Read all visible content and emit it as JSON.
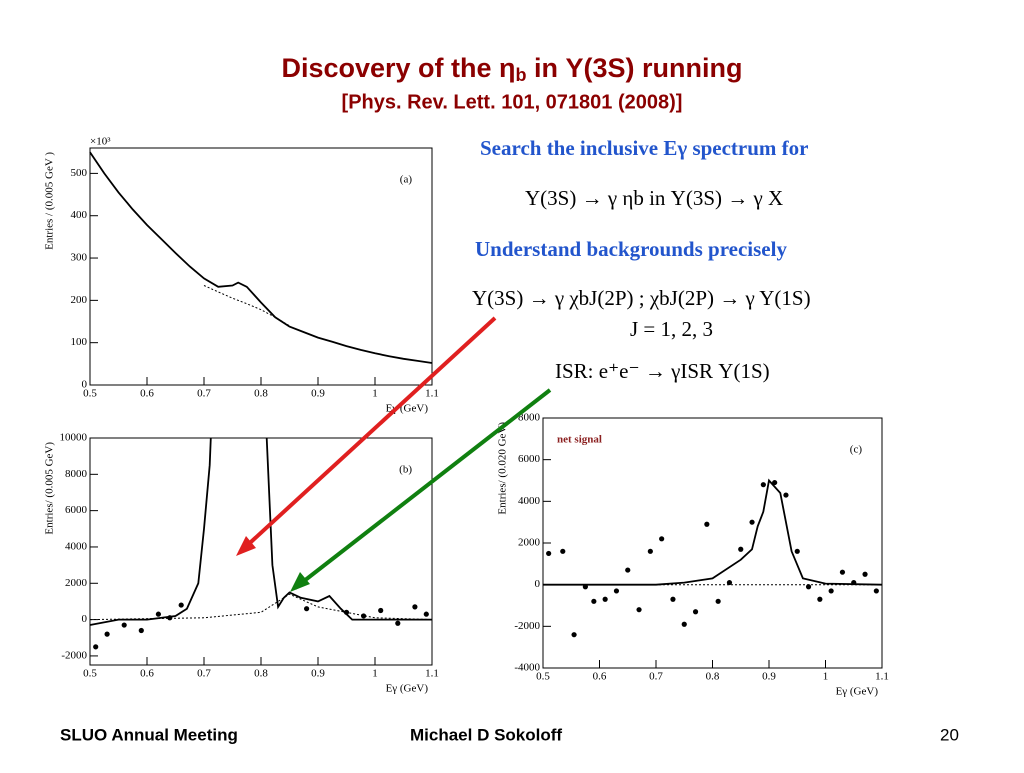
{
  "title": "Discovery of the η",
  "title_sub": "b",
  "title_rest": " in Υ(3S) running",
  "subtitle": "[Phys. Rev. Lett. 101, 071801 (2008)]",
  "notes": [
    "Search the inclusive Eγ spectrum for",
    "Υ(3S) → γ ηb in Υ(3S) → γ X",
    "Understand backgrounds precisely",
    "Υ(3S) → γ χbJ(2P) ; χbJ(2P) → γ Υ(1S)",
    "J = 1, 2, 3",
    "ISR: e⁺e⁻ → γISR Υ(1S)"
  ],
  "footer": {
    "left": "SLUO Annual Meeting",
    "center": "Michael D Sokoloff",
    "page": "20"
  },
  "chart_data": [
    {
      "type": "line",
      "panel": "(a)",
      "multiplier": "×10³",
      "ylabel": "Entries / (0.005 GeV )",
      "xlabel": "Eγ (GeV)",
      "xlim": [
        0.5,
        1.1
      ],
      "xticks": [
        0.5,
        0.6,
        0.7,
        0.8,
        0.9,
        1,
        1.1
      ],
      "ylim": [
        0,
        560
      ],
      "yticks": [
        0,
        100,
        200,
        300,
        400,
        500
      ],
      "series": [
        {
          "style": "solid",
          "color": "#000000",
          "x": [
            0.5,
            0.525,
            0.55,
            0.575,
            0.6,
            0.625,
            0.65,
            0.675,
            0.7,
            0.725,
            0.75,
            0.76,
            0.775,
            0.8,
            0.825,
            0.85,
            0.875,
            0.9,
            0.925,
            0.95,
            0.975,
            1.0,
            1.025,
            1.05,
            1.075,
            1.1
          ],
          "values": [
            550,
            500,
            455,
            415,
            378,
            345,
            312,
            280,
            252,
            232,
            235,
            242,
            232,
            195,
            160,
            138,
            125,
            112,
            102,
            92,
            83,
            75,
            68,
            62,
            57,
            52
          ]
        },
        {
          "style": "dashed",
          "color": "#000000",
          "x": [
            0.7,
            0.725,
            0.75,
            0.775,
            0.8,
            0.825,
            0.85
          ],
          "values": [
            235,
            220,
            205,
            192,
            178,
            160,
            140
          ]
        }
      ]
    },
    {
      "type": "line",
      "panel": "(b)",
      "ylabel": "Entries/ (0.005 GeV)",
      "xlabel": "Eγ (GeV)",
      "xlim": [
        0.5,
        1.1
      ],
      "xticks": [
        0.5,
        0.6,
        0.7,
        0.8,
        0.9,
        1,
        1.1
      ],
      "ylim": [
        -2500,
        10000
      ],
      "yticks": [
        -2000,
        0,
        2000,
        4000,
        6000,
        8000,
        10000
      ],
      "series": [
        {
          "style": "solid",
          "color": "#000000",
          "x": [
            0.5,
            0.55,
            0.6,
            0.65,
            0.67,
            0.69,
            0.7,
            0.71,
            0.712,
            0.8,
            0.81,
            0.82,
            0.83,
            0.84,
            0.85,
            0.87,
            0.9,
            0.92,
            0.94,
            0.96,
            1.0,
            1.05,
            1.1
          ],
          "values": [
            -300,
            0,
            0,
            200,
            600,
            2000,
            5000,
            8500,
            10000,
            null,
            10000,
            3000,
            700,
            1200,
            1500,
            1200,
            1000,
            1300,
            600,
            0,
            0,
            0,
            0
          ]
        },
        {
          "style": "dashed",
          "color": "#000000",
          "x": [
            0.5,
            0.7,
            0.8,
            0.85,
            0.9,
            1.0,
            1.1
          ],
          "values": [
            0,
            100,
            400,
            1400,
            700,
            100,
            0
          ]
        },
        {
          "style": "markers",
          "color": "#000000",
          "x": [
            0.51,
            0.53,
            0.56,
            0.59,
            0.62,
            0.64,
            0.66,
            0.88,
            0.95,
            0.98,
            1.01,
            1.04,
            1.07,
            1.09
          ],
          "values": [
            -1500,
            -800,
            -300,
            -600,
            300,
            100,
            800,
            600,
            400,
            200,
            500,
            -200,
            700,
            300
          ]
        }
      ]
    },
    {
      "type": "scatter",
      "panel": "(c)",
      "label": "net signal",
      "ylabel": "Entries/ (0.020 GeV)",
      "xlabel": "Eγ (GeV)",
      "xlim": [
        0.5,
        1.1
      ],
      "xticks": [
        0.5,
        0.6,
        0.7,
        0.8,
        0.9,
        1,
        1.1
      ],
      "ylim": [
        -4000,
        8000
      ],
      "yticks": [
        -4000,
        -2000,
        0,
        2000,
        4000,
        6000,
        8000
      ],
      "series": [
        {
          "style": "markers",
          "color": "#000000",
          "x": [
            0.51,
            0.535,
            0.555,
            0.575,
            0.59,
            0.61,
            0.63,
            0.65,
            0.67,
            0.69,
            0.71,
            0.73,
            0.75,
            0.77,
            0.79,
            0.81,
            0.83,
            0.85,
            0.87,
            0.89,
            0.91,
            0.93,
            0.95,
            0.97,
            0.99,
            1.01,
            1.03,
            1.05,
            1.07,
            1.09
          ],
          "values": [
            1500,
            1600,
            -2400,
            -100,
            -800,
            -700,
            -300,
            700,
            -1200,
            1600,
            2200,
            -700,
            -1900,
            -1300,
            2900,
            -800,
            100,
            1700,
            3000,
            4800,
            4900,
            4300,
            1600,
            -100,
            -700,
            -300,
            600,
            100,
            500,
            -300
          ]
        },
        {
          "style": "solid",
          "color": "#000000",
          "x": [
            0.5,
            0.7,
            0.75,
            0.8,
            0.85,
            0.87,
            0.88,
            0.89,
            0.9,
            0.92,
            0.94,
            0.96,
            1.0,
            1.1
          ],
          "values": [
            0,
            0,
            100,
            300,
            1200,
            1700,
            2800,
            3500,
            5000,
            4400,
            1600,
            300,
            50,
            0
          ]
        },
        {
          "style": "dashed",
          "color": "#000000",
          "x": [
            0.5,
            1.1
          ],
          "values": [
            0,
            0
          ]
        }
      ]
    }
  ]
}
